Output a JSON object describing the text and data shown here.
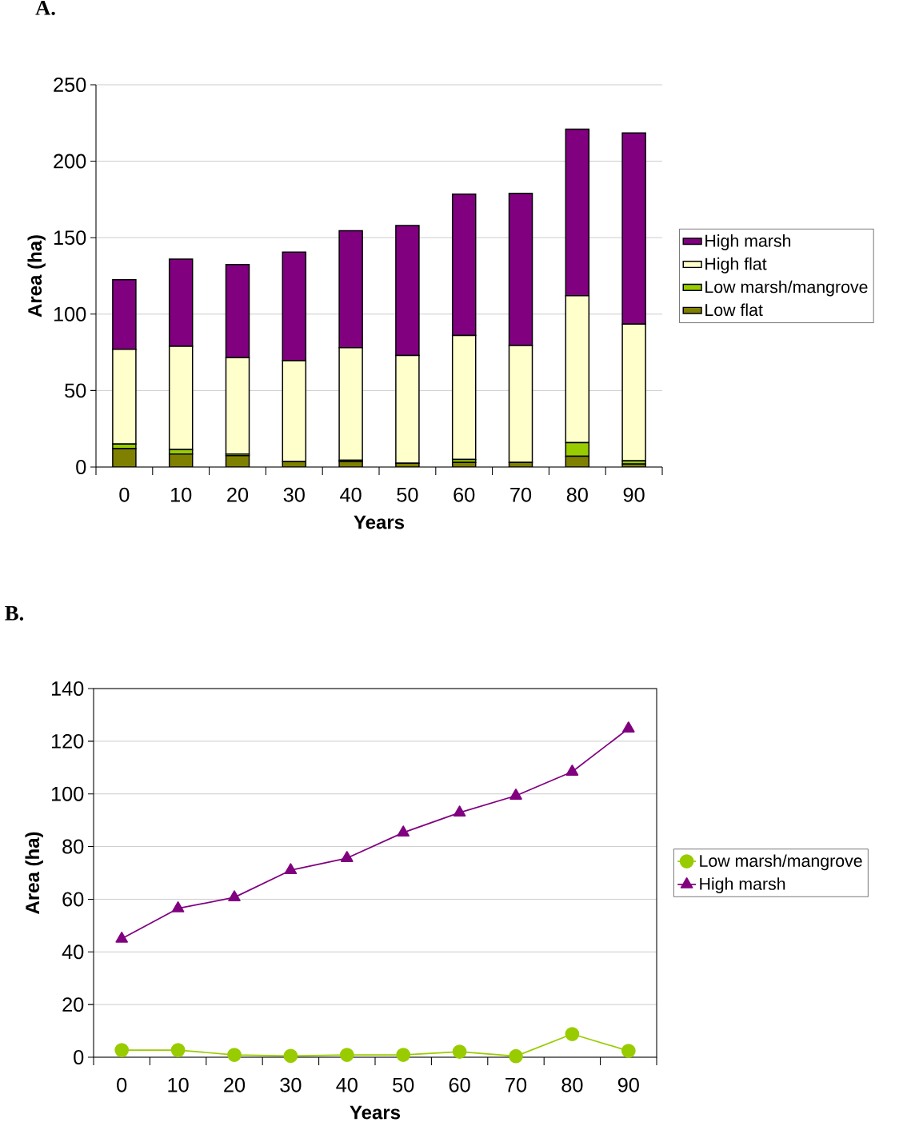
{
  "chart_data": [
    {
      "type": "bar",
      "title": "A.",
      "xlabel": "Years",
      "ylabel": "Area (ha)",
      "stacked": true,
      "categories": [
        "0",
        "10",
        "20",
        "30",
        "40",
        "50",
        "60",
        "70",
        "80",
        "90"
      ],
      "series": [
        {
          "name": "Low flat",
          "color": "#808000",
          "values": [
            12,
            8.5,
            7.5,
            3.5,
            3.5,
            2.5,
            3,
            3,
            7,
            2
          ]
        },
        {
          "name": "Low marsh/mangrove",
          "color": "#99cc00",
          "values": [
            3,
            3,
            1,
            null,
            1,
            null,
            2,
            null,
            9,
            2
          ]
        },
        {
          "name": "High flat",
          "color": "#ffffcc",
          "values": [
            62,
            67.5,
            63,
            66,
            73.5,
            70.5,
            81,
            76.5,
            96,
            89.5
          ]
        },
        {
          "name": "High marsh",
          "color": "#800080",
          "values": [
            45.5,
            57,
            61,
            71,
            76.5,
            85,
            92.5,
            99.5,
            109,
            125
          ]
        }
      ],
      "ylim": [
        0,
        250
      ],
      "yticks": [
        0,
        50,
        100,
        150,
        200,
        250
      ],
      "grid": "y",
      "legend": "right"
    },
    {
      "type": "line",
      "title": "B.",
      "xlabel": "Years",
      "ylabel": "Area (ha)",
      "categories": [
        "0",
        "10",
        "20",
        "30",
        "40",
        "50",
        "60",
        "70",
        "80",
        "90"
      ],
      "series": [
        {
          "name": "Low marsh/mangrove",
          "color": "#99cc00",
          "marker": "circle",
          "values": [
            2.7,
            2.7,
            0.9,
            0.5,
            0.9,
            0.9,
            2.1,
            0.4,
            8.8,
            2.4
          ]
        },
        {
          "name": "High marsh",
          "color": "#800080",
          "marker": "triangle",
          "values": [
            45,
            56.5,
            60.7,
            71,
            75.6,
            85.3,
            92.9,
            99.3,
            108.4,
            124.8
          ]
        }
      ],
      "ylim": [
        0,
        140
      ],
      "yticks": [
        0,
        20,
        40,
        60,
        80,
        100,
        120,
        140
      ],
      "grid": "y",
      "legend": "right"
    }
  ]
}
